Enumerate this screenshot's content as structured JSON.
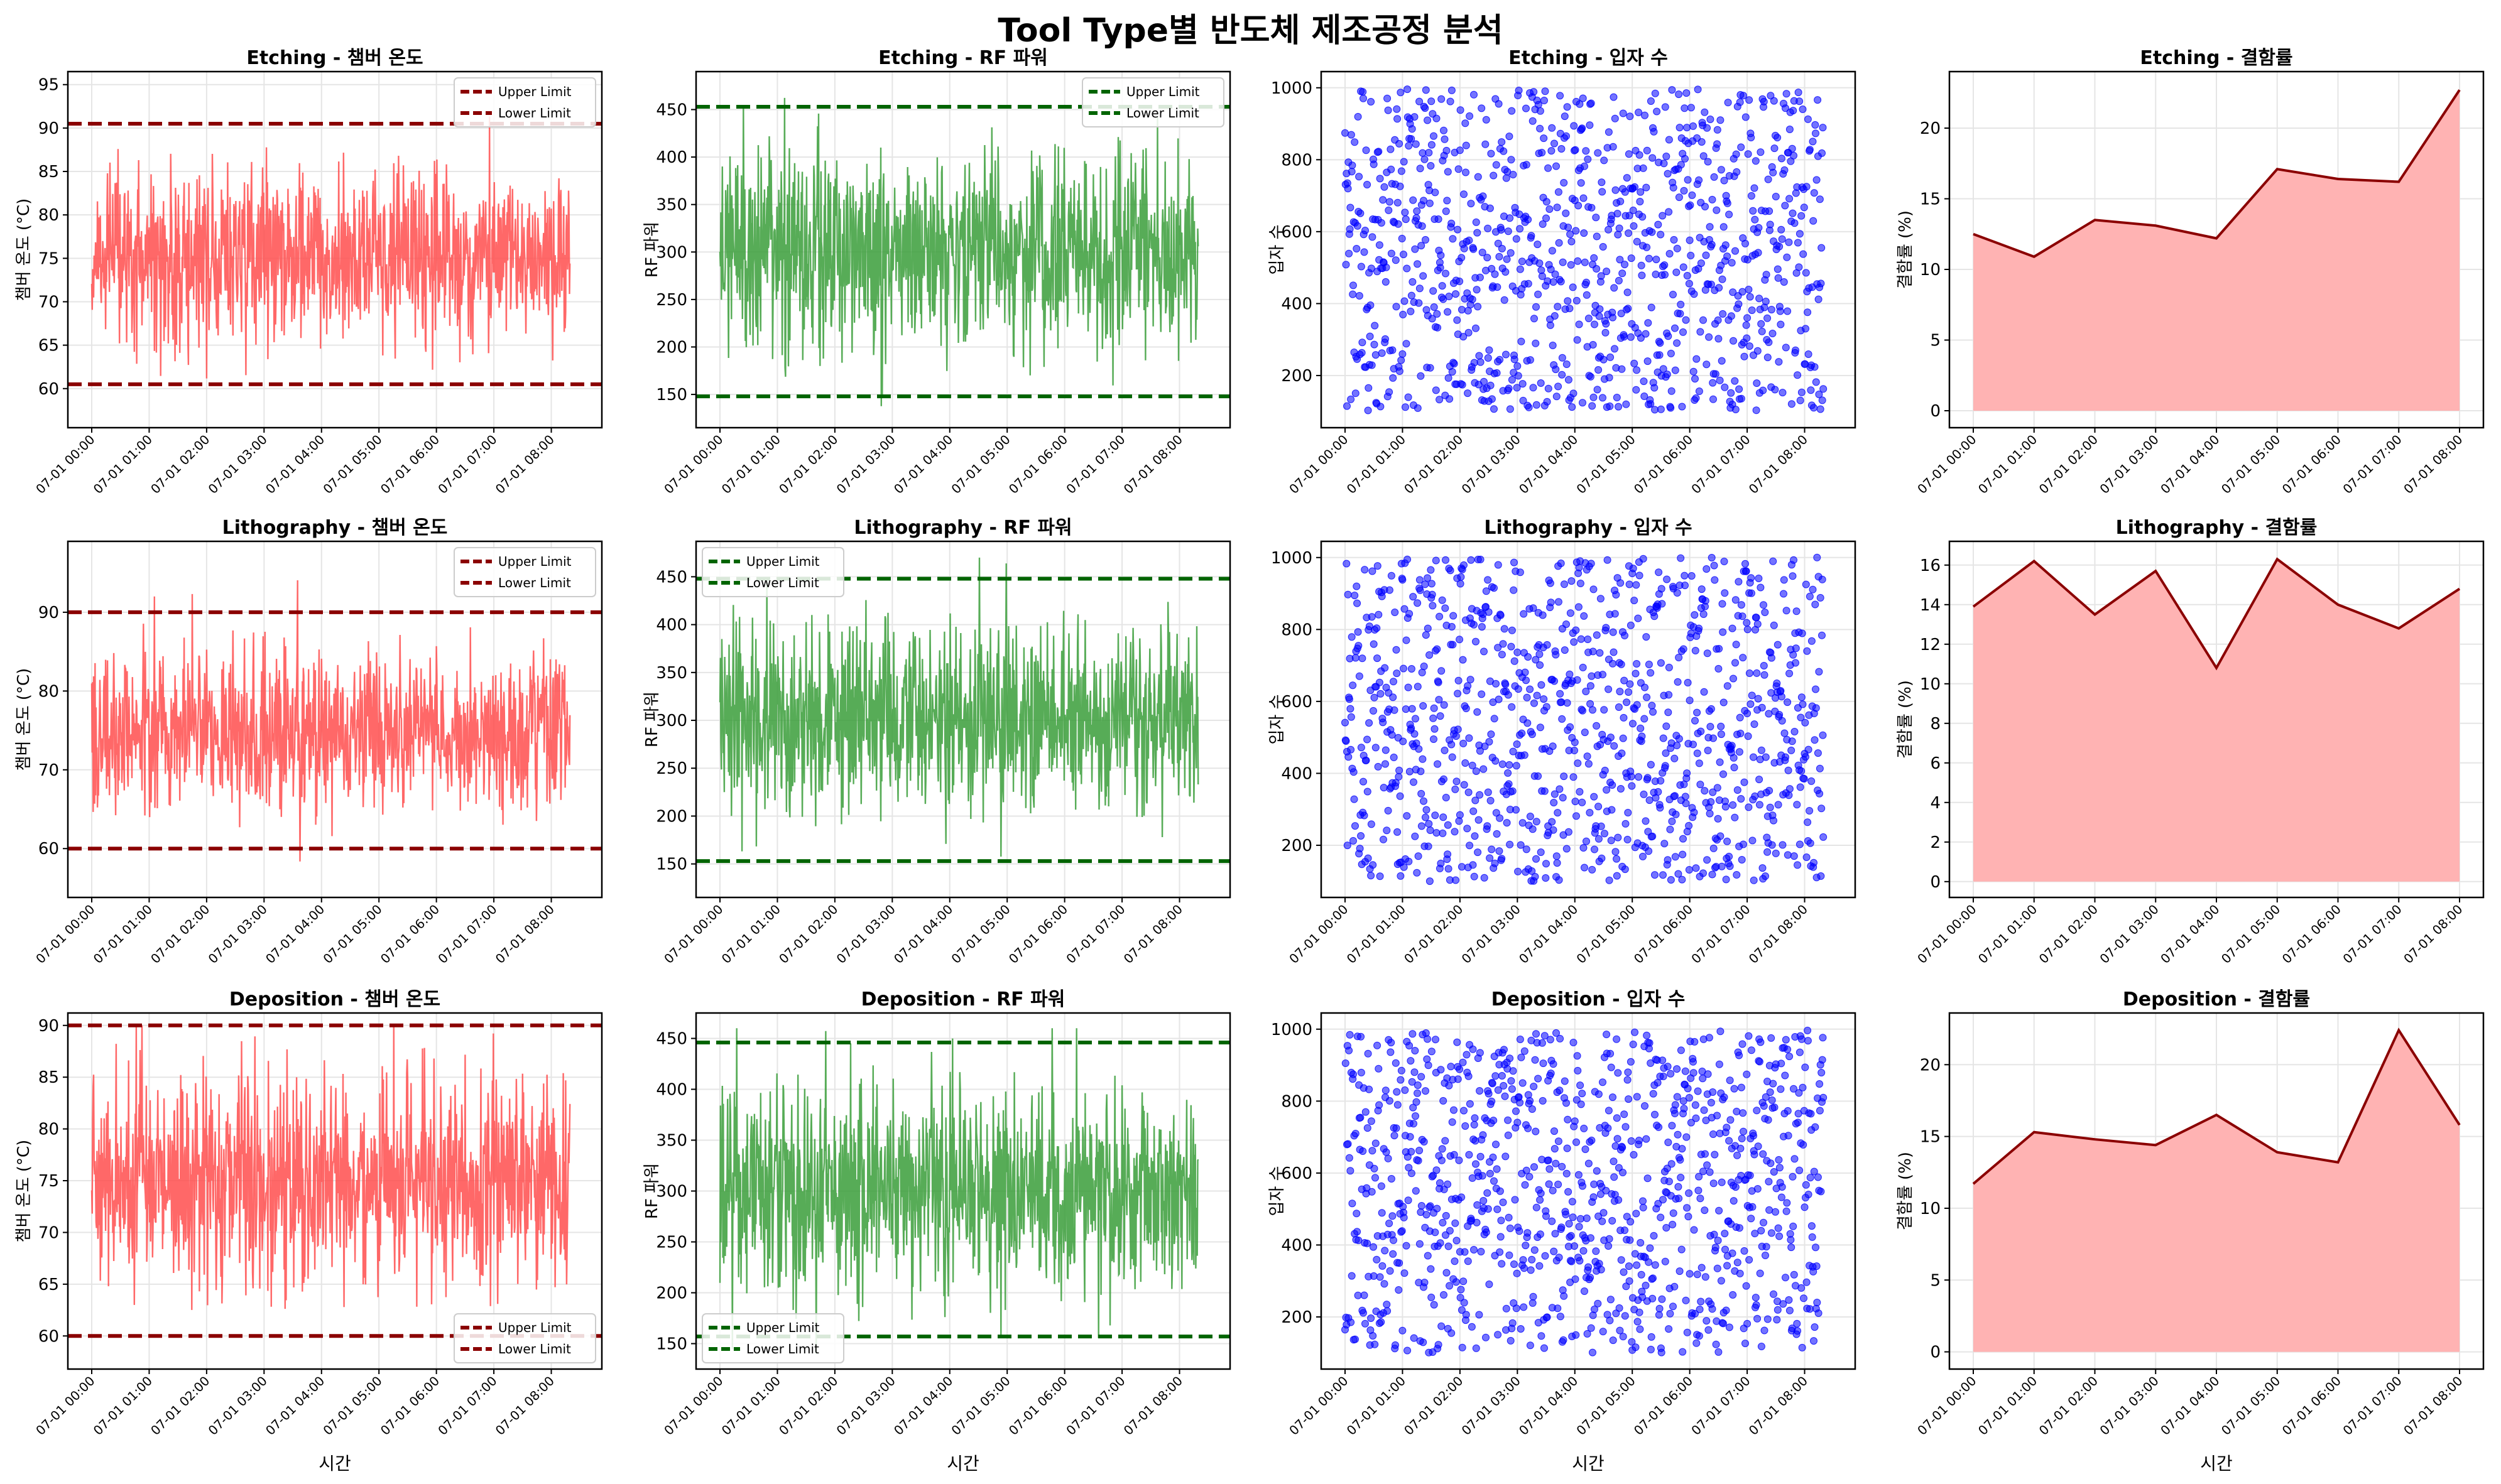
{
  "figure": {
    "title": "Tool Type별 반도체 제조공정 분석",
    "colors": {
      "temperature": "#ff4d4d",
      "power": "#3a9e3a",
      "scatter": "#0000ff",
      "defect_fill": "#ffb3b3",
      "defect_line": "#8b0000",
      "limit_temp": "#8b0000",
      "limit_power": "#006400",
      "grid": "#e5e5e5"
    }
  },
  "chart_data": [
    {
      "type": "line",
      "row": 0,
      "col": 0,
      "metric": "temperature",
      "title": "Etching - 챔버 온도",
      "xlabel": "",
      "ylabel": "챔버 온도 (°C)",
      "ylim": [
        55.5,
        96.5
      ],
      "yticks": [
        60,
        65,
        70,
        75,
        80,
        85,
        90,
        95
      ],
      "xticks": [
        "07-01 00:00",
        "07-01 01:00",
        "07-01 02:00",
        "07-01 03:00",
        "07-01 04:00",
        "07-01 05:00",
        "07-01 06:00",
        "07-01 07:00",
        "07-01 08:00"
      ],
      "series_summary": {
        "n_points": 1000,
        "mean": 75,
        "std": 5,
        "min": 57.5,
        "max": 95,
        "x_start": "07-01 00:00",
        "x_end": "07-01 08:20"
      },
      "limits": [
        {
          "name": "Upper Limit",
          "value": 90.5
        },
        {
          "name": "Lower Limit",
          "value": 60.5
        }
      ],
      "legend": "upper-right",
      "grid": true
    },
    {
      "type": "line",
      "row": 0,
      "col": 1,
      "metric": "power",
      "title": "Etching - RF 파워",
      "xlabel": "",
      "ylabel": "RF 파워",
      "ylim": [
        115,
        490
      ],
      "yticks": [
        150,
        200,
        250,
        300,
        350,
        400,
        450
      ],
      "xticks": [
        "07-01 00:00",
        "07-01 01:00",
        "07-01 02:00",
        "07-01 03:00",
        "07-01 04:00",
        "07-01 05:00",
        "07-01 06:00",
        "07-01 07:00",
        "07-01 08:00"
      ],
      "series_summary": {
        "n_points": 1000,
        "mean": 300,
        "std": 50,
        "min": 128,
        "max": 475,
        "x_start": "07-01 00:00",
        "x_end": "07-01 08:20"
      },
      "limits": [
        {
          "name": "Upper Limit",
          "value": 453
        },
        {
          "name": "Lower Limit",
          "value": 148
        }
      ],
      "legend": "upper-right",
      "grid": true
    },
    {
      "type": "scatter",
      "row": 0,
      "col": 2,
      "metric": "particles",
      "title": "Etching - 입자 수",
      "xlabel": "",
      "ylabel": "입자 수",
      "ylim": [
        55,
        1045
      ],
      "yticks": [
        200,
        400,
        600,
        800,
        1000
      ],
      "xticks": [
        "07-01 00:00",
        "07-01 01:00",
        "07-01 02:00",
        "07-01 03:00",
        "07-01 04:00",
        "07-01 05:00",
        "07-01 06:00",
        "07-01 07:00",
        "07-01 08:00"
      ],
      "series_summary": {
        "n_points": 1000,
        "distribution": "uniform",
        "min": 100,
        "max": 1000,
        "x_start": "07-01 00:00",
        "x_end": "07-01 08:20"
      },
      "grid": true
    },
    {
      "type": "area",
      "row": 0,
      "col": 3,
      "metric": "defect",
      "title": "Etching - 결함률",
      "xlabel": "",
      "ylabel": "결함률 (%)",
      "ylim": [
        -1.2,
        24
      ],
      "yticks": [
        0,
        5,
        10,
        15,
        20
      ],
      "categories": [
        "07-01 00:00",
        "07-01 01:00",
        "07-01 02:00",
        "07-01 03:00",
        "07-01 04:00",
        "07-01 05:00",
        "07-01 06:00",
        "07-01 07:00",
        "07-01 08:00"
      ],
      "values": [
        12.5,
        10.9,
        13.5,
        13.1,
        12.2,
        17.1,
        16.4,
        16.2,
        22.7
      ],
      "grid": true
    },
    {
      "type": "line",
      "row": 1,
      "col": 0,
      "metric": "temperature",
      "title": "Lithography - 챔버 온도",
      "xlabel": "",
      "ylabel": "챔버 온도 (°C)",
      "ylim": [
        53.8,
        99
      ],
      "yticks": [
        60,
        70,
        80,
        90
      ],
      "xticks": [
        "07-01 00:00",
        "07-01 01:00",
        "07-01 02:00",
        "07-01 03:00",
        "07-01 04:00",
        "07-01 05:00",
        "07-01 06:00",
        "07-01 07:00",
        "07-01 08:00"
      ],
      "series_summary": {
        "n_points": 1000,
        "mean": 75,
        "std": 5,
        "min": 55.8,
        "max": 97.5,
        "x_start": "07-01 00:00",
        "x_end": "07-01 08:20"
      },
      "limits": [
        {
          "name": "Upper Limit",
          "value": 90
        },
        {
          "name": "Lower Limit",
          "value": 60
        }
      ],
      "legend": "upper-right",
      "grid": true
    },
    {
      "type": "line",
      "row": 1,
      "col": 1,
      "metric": "power",
      "title": "Lithography - RF 파워",
      "xlabel": "",
      "ylabel": "RF 파워",
      "ylim": [
        115,
        487
      ],
      "yticks": [
        150,
        200,
        250,
        300,
        350,
        400,
        450
      ],
      "xticks": [
        "07-01 00:00",
        "07-01 01:00",
        "07-01 02:00",
        "07-01 03:00",
        "07-01 04:00",
        "07-01 05:00",
        "07-01 06:00",
        "07-01 07:00",
        "07-01 08:00"
      ],
      "series_summary": {
        "n_points": 1000,
        "mean": 300,
        "std": 50,
        "min": 128,
        "max": 470,
        "x_start": "07-01 00:00",
        "x_end": "07-01 08:20"
      },
      "limits": [
        {
          "name": "Upper Limit",
          "value": 448
        },
        {
          "name": "Lower Limit",
          "value": 153
        }
      ],
      "legend": "upper-left",
      "grid": true
    },
    {
      "type": "scatter",
      "row": 1,
      "col": 2,
      "metric": "particles",
      "title": "Lithography - 입자 수",
      "xlabel": "",
      "ylabel": "입자 수",
      "ylim": [
        55,
        1045
      ],
      "yticks": [
        200,
        400,
        600,
        800,
        1000
      ],
      "xticks": [
        "07-01 00:00",
        "07-01 01:00",
        "07-01 02:00",
        "07-01 03:00",
        "07-01 04:00",
        "07-01 05:00",
        "07-01 06:00",
        "07-01 07:00",
        "07-01 08:00"
      ],
      "series_summary": {
        "n_points": 1000,
        "distribution": "uniform",
        "min": 100,
        "max": 1000,
        "x_start": "07-01 00:00",
        "x_end": "07-01 08:20"
      },
      "grid": true
    },
    {
      "type": "area",
      "row": 1,
      "col": 3,
      "metric": "defect",
      "title": "Lithography - 결함률",
      "xlabel": "",
      "ylabel": "결함률 (%)",
      "ylim": [
        -0.8,
        17.2
      ],
      "yticks": [
        0,
        2,
        4,
        6,
        8,
        10,
        12,
        14,
        16
      ],
      "categories": [
        "07-01 00:00",
        "07-01 01:00",
        "07-01 02:00",
        "07-01 03:00",
        "07-01 04:00",
        "07-01 05:00",
        "07-01 06:00",
        "07-01 07:00",
        "07-01 08:00"
      ],
      "values": [
        13.9,
        16.2,
        13.5,
        15.7,
        10.8,
        16.3,
        14.0,
        12.8,
        14.8
      ],
      "grid": true
    },
    {
      "type": "line",
      "row": 2,
      "col": 0,
      "metric": "temperature",
      "title": "Deposition - 챔버 온도",
      "xlabel": "시간",
      "ylabel": "챔버 온도 (°C)",
      "ylim": [
        56.8,
        91.2
      ],
      "yticks": [
        60,
        65,
        70,
        75,
        80,
        85,
        90
      ],
      "xticks": [
        "07-01 00:00",
        "07-01 01:00",
        "07-01 02:00",
        "07-01 03:00",
        "07-01 04:00",
        "07-01 05:00",
        "07-01 06:00",
        "07-01 07:00",
        "07-01 08:00"
      ],
      "series_summary": {
        "n_points": 1000,
        "mean": 75,
        "std": 5,
        "min": 58.2,
        "max": 90,
        "x_start": "07-01 00:00",
        "x_end": "07-01 08:20"
      },
      "limits": [
        {
          "name": "Upper Limit",
          "value": 90
        },
        {
          "name": "Lower Limit",
          "value": 60
        }
      ],
      "legend": "lower-right",
      "grid": true
    },
    {
      "type": "line",
      "row": 2,
      "col": 1,
      "metric": "power",
      "title": "Deposition - RF 파워",
      "xlabel": "시간",
      "ylabel": "RF 파워",
      "ylim": [
        125,
        475
      ],
      "yticks": [
        150,
        200,
        250,
        300,
        350,
        400,
        450
      ],
      "xticks": [
        "07-01 00:00",
        "07-01 01:00",
        "07-01 02:00",
        "07-01 03:00",
        "07-01 04:00",
        "07-01 05:00",
        "07-01 06:00",
        "07-01 07:00",
        "07-01 08:00"
      ],
      "series_summary": {
        "n_points": 1000,
        "mean": 300,
        "std": 50,
        "min": 140,
        "max": 460,
        "x_start": "07-01 00:00",
        "x_end": "07-01 08:20"
      },
      "limits": [
        {
          "name": "Upper Limit",
          "value": 446
        },
        {
          "name": "Lower Limit",
          "value": 157
        }
      ],
      "legend": "lower-left",
      "grid": true
    },
    {
      "type": "scatter",
      "row": 2,
      "col": 2,
      "metric": "particles",
      "title": "Deposition - 입자 수",
      "xlabel": "시간",
      "ylabel": "입자 수",
      "ylim": [
        55,
        1045
      ],
      "yticks": [
        200,
        400,
        600,
        800,
        1000
      ],
      "xticks": [
        "07-01 00:00",
        "07-01 01:00",
        "07-01 02:00",
        "07-01 03:00",
        "07-01 04:00",
        "07-01 05:00",
        "07-01 06:00",
        "07-01 07:00",
        "07-01 08:00"
      ],
      "series_summary": {
        "n_points": 1000,
        "distribution": "uniform",
        "min": 100,
        "max": 1000,
        "x_start": "07-01 00:00",
        "x_end": "07-01 08:20"
      },
      "grid": true
    },
    {
      "type": "area",
      "row": 2,
      "col": 3,
      "metric": "defect",
      "title": "Deposition - 결함률",
      "xlabel": "시간",
      "ylabel": "결함률 (%)",
      "ylim": [
        -1.2,
        23.6
      ],
      "yticks": [
        0,
        5,
        10,
        15,
        20
      ],
      "categories": [
        "07-01 00:00",
        "07-01 01:00",
        "07-01 02:00",
        "07-01 03:00",
        "07-01 04:00",
        "07-01 05:00",
        "07-01 06:00",
        "07-01 07:00",
        "07-01 08:00"
      ],
      "values": [
        11.7,
        15.3,
        14.8,
        14.4,
        16.5,
        13.9,
        13.2,
        22.4,
        15.8
      ],
      "grid": true
    }
  ]
}
